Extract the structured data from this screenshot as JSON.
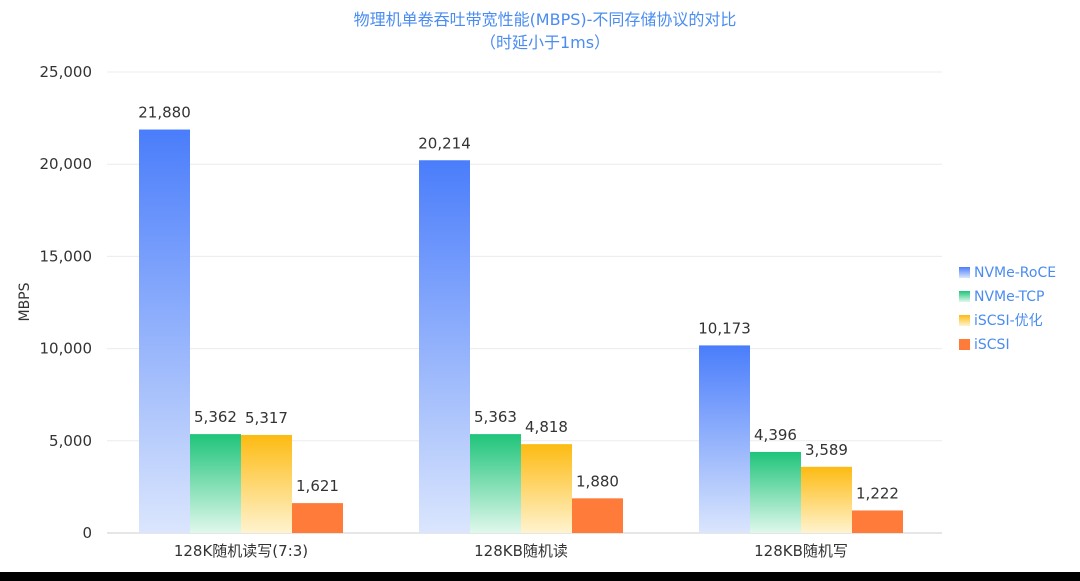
{
  "chart_data": {
    "type": "bar",
    "title": "物理机单卷吞吐带宽性能(MBPS)-不同存储协议的对比",
    "subtitle": "（时延小于1ms）",
    "xlabel": "",
    "ylabel": "MBPS",
    "ylim": [
      0,
      25000
    ],
    "yticks": [
      "0",
      "5,000",
      "10,000",
      "15,000",
      "20,000",
      "25,000"
    ],
    "grid": true,
    "legend_position": "right",
    "categories": [
      "128K随机读写(7:3)",
      "128KB随机读",
      "128KB随机写"
    ],
    "series": [
      {
        "name": "NVMe-RoCE",
        "values": [
          21880,
          20214,
          10173
        ],
        "labels": [
          "21,880",
          "20,214",
          "10,173"
        ],
        "color": "#4a7dfb",
        "color_light": "#dbe6fd"
      },
      {
        "name": "NVMe-TCP",
        "values": [
          5362,
          5363,
          4396
        ],
        "labels": [
          "5,362",
          "5,363",
          "4,396"
        ],
        "color": "#1fc47a",
        "color_light": "#e0f8ec"
      },
      {
        "name": "iSCSI-优化",
        "values": [
          5317,
          4818,
          3589
        ],
        "labels": [
          "5,317",
          "4,818",
          "3,589"
        ],
        "color": "#fdbb12",
        "color_light": "#fff3cf"
      },
      {
        "name": "iSCSI",
        "values": [
          1621,
          1880,
          1222
        ],
        "labels": [
          "1,621",
          "1,880",
          "1,222"
        ],
        "color": "#ff7b3a",
        "color_light": "#ff7b3a"
      }
    ]
  }
}
